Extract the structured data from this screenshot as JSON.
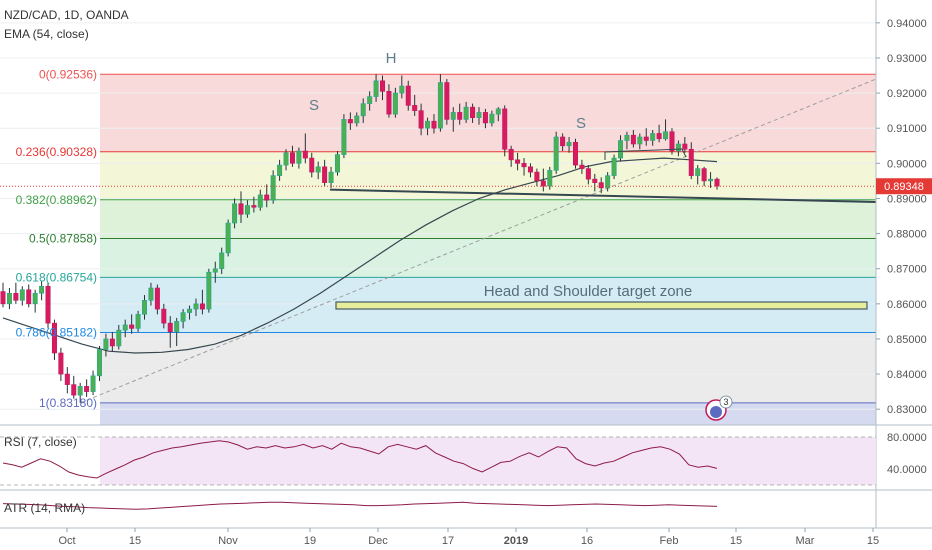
{
  "header": {
    "symbol": "NZD/CAD, 1D, OANDA",
    "ema_label": "EMA (54, close)"
  },
  "chart_data": {
    "type": "candlestick",
    "symbol": "NZD/CAD",
    "timeframe": "1D",
    "source": "OANDA",
    "ylim": [
      0.8255,
      0.9465
    ],
    "price_ticks": [
      "0.94000",
      "0.93000",
      "0.92000",
      "0.91000",
      "0.90000",
      "0.89000",
      "0.88000",
      "0.87000",
      "0.86000",
      "0.85000",
      "0.84000",
      "0.83000"
    ],
    "last_price": "0.89348",
    "x_ticks": [
      "Oct",
      "15",
      "Nov",
      "19",
      "Dec",
      "17",
      "2019",
      "16",
      "Feb",
      "15",
      "Mar",
      "15"
    ],
    "fib_levels": [
      {
        "label": "0(0.92536)",
        "value": 0.92536,
        "color": "#ef5350"
      },
      {
        "label": "0.236(0.90328)",
        "value": 0.90328,
        "color": "#e53935"
      },
      {
        "label": "0.382(0.88962)",
        "value": 0.88962,
        "color": "#43a047"
      },
      {
        "label": "0.5(0.87858)",
        "value": 0.87858,
        "color": "#2e7d32"
      },
      {
        "label": "0.618(0.86754)",
        "value": 0.86754,
        "color": "#26a69a"
      },
      {
        "label": "0.786(0.85182)",
        "value": 0.85182,
        "color": "#1e88e5"
      },
      {
        "label": "1(0.83180)",
        "value": 0.8318,
        "color": "#5c6bc0"
      }
    ],
    "annotations": {
      "left_shoulder": "S",
      "head": "H",
      "right_shoulder": "S",
      "target_zone": "Head and Shoulder target zone"
    },
    "target_zone_value": 0.8585,
    "candles": [
      {
        "o": 0.8635,
        "h": 0.866,
        "l": 0.859,
        "c": 0.86
      },
      {
        "o": 0.86,
        "h": 0.8645,
        "l": 0.8585,
        "c": 0.863
      },
      {
        "o": 0.863,
        "h": 0.866,
        "l": 0.86,
        "c": 0.861
      },
      {
        "o": 0.861,
        "h": 0.865,
        "l": 0.8595,
        "c": 0.864
      },
      {
        "o": 0.864,
        "h": 0.8655,
        "l": 0.859,
        "c": 0.86
      },
      {
        "o": 0.86,
        "h": 0.864,
        "l": 0.8575,
        "c": 0.863
      },
      {
        "o": 0.863,
        "h": 0.8665,
        "l": 0.861,
        "c": 0.865
      },
      {
        "o": 0.865,
        "h": 0.866,
        "l": 0.853,
        "c": 0.8545
      },
      {
        "o": 0.8545,
        "h": 0.8555,
        "l": 0.844,
        "c": 0.846
      },
      {
        "o": 0.846,
        "h": 0.8475,
        "l": 0.838,
        "c": 0.84
      },
      {
        "o": 0.84,
        "h": 0.842,
        "l": 0.8345,
        "c": 0.837
      },
      {
        "o": 0.837,
        "h": 0.8395,
        "l": 0.833,
        "c": 0.834
      },
      {
        "o": 0.834,
        "h": 0.8375,
        "l": 0.8318,
        "c": 0.8365
      },
      {
        "o": 0.8365,
        "h": 0.8385,
        "l": 0.8335,
        "c": 0.835
      },
      {
        "o": 0.835,
        "h": 0.841,
        "l": 0.834,
        "c": 0.8395
      },
      {
        "o": 0.8395,
        "h": 0.848,
        "l": 0.838,
        "c": 0.847
      },
      {
        "o": 0.847,
        "h": 0.8515,
        "l": 0.845,
        "c": 0.85
      },
      {
        "o": 0.85,
        "h": 0.852,
        "l": 0.8465,
        "c": 0.848
      },
      {
        "o": 0.848,
        "h": 0.854,
        "l": 0.847,
        "c": 0.8525
      },
      {
        "o": 0.8525,
        "h": 0.8555,
        "l": 0.8505,
        "c": 0.854
      },
      {
        "o": 0.854,
        "h": 0.857,
        "l": 0.8515,
        "c": 0.853
      },
      {
        "o": 0.853,
        "h": 0.858,
        "l": 0.852,
        "c": 0.857
      },
      {
        "o": 0.857,
        "h": 0.8625,
        "l": 0.8555,
        "c": 0.861
      },
      {
        "o": 0.861,
        "h": 0.866,
        "l": 0.8595,
        "c": 0.8645
      },
      {
        "o": 0.8645,
        "h": 0.8655,
        "l": 0.857,
        "c": 0.8585
      },
      {
        "o": 0.8585,
        "h": 0.86,
        "l": 0.853,
        "c": 0.8545
      },
      {
        "o": 0.8545,
        "h": 0.8565,
        "l": 0.8475,
        "c": 0.852
      },
      {
        "o": 0.852,
        "h": 0.856,
        "l": 0.848,
        "c": 0.855
      },
      {
        "o": 0.855,
        "h": 0.8585,
        "l": 0.853,
        "c": 0.8575
      },
      {
        "o": 0.8575,
        "h": 0.8595,
        "l": 0.8555,
        "c": 0.8585
      },
      {
        "o": 0.8585,
        "h": 0.8615,
        "l": 0.8565,
        "c": 0.86
      },
      {
        "o": 0.86,
        "h": 0.864,
        "l": 0.857,
        "c": 0.8585
      },
      {
        "o": 0.8585,
        "h": 0.87,
        "l": 0.8575,
        "c": 0.869
      },
      {
        "o": 0.869,
        "h": 0.872,
        "l": 0.866,
        "c": 0.87
      },
      {
        "o": 0.87,
        "h": 0.876,
        "l": 0.8685,
        "c": 0.8745
      },
      {
        "o": 0.8745,
        "h": 0.884,
        "l": 0.8735,
        "c": 0.883
      },
      {
        "o": 0.883,
        "h": 0.89,
        "l": 0.8815,
        "c": 0.8885
      },
      {
        "o": 0.8885,
        "h": 0.892,
        "l": 0.883,
        "c": 0.8855
      },
      {
        "o": 0.8855,
        "h": 0.8895,
        "l": 0.8845,
        "c": 0.888
      },
      {
        "o": 0.888,
        "h": 0.8905,
        "l": 0.886,
        "c": 0.8875
      },
      {
        "o": 0.8875,
        "h": 0.8925,
        "l": 0.8865,
        "c": 0.891
      },
      {
        "o": 0.891,
        "h": 0.894,
        "l": 0.8875,
        "c": 0.8895
      },
      {
        "o": 0.8895,
        "h": 0.898,
        "l": 0.8885,
        "c": 0.8965
      },
      {
        "o": 0.8965,
        "h": 0.901,
        "l": 0.895,
        "c": 0.8995
      },
      {
        "o": 0.8995,
        "h": 0.904,
        "l": 0.898,
        "c": 0.903
      },
      {
        "o": 0.903,
        "h": 0.905,
        "l": 0.899,
        "c": 0.9
      },
      {
        "o": 0.9,
        "h": 0.9045,
        "l": 0.8985,
        "c": 0.9035
      },
      {
        "o": 0.9035,
        "h": 0.9085,
        "l": 0.9,
        "c": 0.9015
      },
      {
        "o": 0.9015,
        "h": 0.903,
        "l": 0.896,
        "c": 0.8975
      },
      {
        "o": 0.8975,
        "h": 0.9005,
        "l": 0.8955,
        "c": 0.899
      },
      {
        "o": 0.899,
        "h": 0.901,
        "l": 0.8935,
        "c": 0.8945
      },
      {
        "o": 0.8945,
        "h": 0.899,
        "l": 0.893,
        "c": 0.8975
      },
      {
        "o": 0.8975,
        "h": 0.9035,
        "l": 0.8965,
        "c": 0.9025
      },
      {
        "o": 0.9025,
        "h": 0.914,
        "l": 0.9015,
        "c": 0.9125
      },
      {
        "o": 0.9125,
        "h": 0.9145,
        "l": 0.9095,
        "c": 0.9115
      },
      {
        "o": 0.9115,
        "h": 0.9145,
        "l": 0.9105,
        "c": 0.9135
      },
      {
        "o": 0.9135,
        "h": 0.9185,
        "l": 0.9115,
        "c": 0.917
      },
      {
        "o": 0.917,
        "h": 0.9205,
        "l": 0.915,
        "c": 0.919
      },
      {
        "o": 0.919,
        "h": 0.9254,
        "l": 0.9175,
        "c": 0.9235
      },
      {
        "o": 0.9235,
        "h": 0.925,
        "l": 0.918,
        "c": 0.9205
      },
      {
        "o": 0.9205,
        "h": 0.9225,
        "l": 0.913,
        "c": 0.914
      },
      {
        "o": 0.914,
        "h": 0.9215,
        "l": 0.913,
        "c": 0.92
      },
      {
        "o": 0.92,
        "h": 0.925,
        "l": 0.9185,
        "c": 0.922
      },
      {
        "o": 0.922,
        "h": 0.9235,
        "l": 0.915,
        "c": 0.9165
      },
      {
        "o": 0.9165,
        "h": 0.9195,
        "l": 0.9135,
        "c": 0.915
      },
      {
        "o": 0.915,
        "h": 0.917,
        "l": 0.908,
        "c": 0.91
      },
      {
        "o": 0.91,
        "h": 0.913,
        "l": 0.908,
        "c": 0.912
      },
      {
        "o": 0.912,
        "h": 0.914,
        "l": 0.9085,
        "c": 0.91
      },
      {
        "o": 0.91,
        "h": 0.9254,
        "l": 0.909,
        "c": 0.923
      },
      {
        "o": 0.923,
        "h": 0.924,
        "l": 0.911,
        "c": 0.9125
      },
      {
        "o": 0.9125,
        "h": 0.916,
        "l": 0.909,
        "c": 0.9145
      },
      {
        "o": 0.9145,
        "h": 0.917,
        "l": 0.911,
        "c": 0.9125
      },
      {
        "o": 0.9125,
        "h": 0.9175,
        "l": 0.9115,
        "c": 0.916
      },
      {
        "o": 0.916,
        "h": 0.917,
        "l": 0.9115,
        "c": 0.913
      },
      {
        "o": 0.913,
        "h": 0.916,
        "l": 0.911,
        "c": 0.9145
      },
      {
        "o": 0.9145,
        "h": 0.9155,
        "l": 0.91,
        "c": 0.9115
      },
      {
        "o": 0.9115,
        "h": 0.915,
        "l": 0.9105,
        "c": 0.914
      },
      {
        "o": 0.914,
        "h": 0.916,
        "l": 0.912,
        "c": 0.9155
      },
      {
        "o": 0.9155,
        "h": 0.9165,
        "l": 0.902,
        "c": 0.904
      },
      {
        "o": 0.904,
        "h": 0.905,
        "l": 0.899,
        "c": 0.901
      },
      {
        "o": 0.901,
        "h": 0.903,
        "l": 0.898,
        "c": 0.9
      },
      {
        "o": 0.9,
        "h": 0.9015,
        "l": 0.8965,
        "c": 0.899
      },
      {
        "o": 0.899,
        "h": 0.9,
        "l": 0.896,
        "c": 0.8975
      },
      {
        "o": 0.8975,
        "h": 0.8985,
        "l": 0.8935,
        "c": 0.895
      },
      {
        "o": 0.895,
        "h": 0.8985,
        "l": 0.892,
        "c": 0.8935
      },
      {
        "o": 0.8935,
        "h": 0.899,
        "l": 0.8925,
        "c": 0.898
      },
      {
        "o": 0.898,
        "h": 0.909,
        "l": 0.897,
        "c": 0.9075
      },
      {
        "o": 0.9075,
        "h": 0.9085,
        "l": 0.9035,
        "c": 0.905
      },
      {
        "o": 0.905,
        "h": 0.9075,
        "l": 0.903,
        "c": 0.906
      },
      {
        "o": 0.906,
        "h": 0.907,
        "l": 0.8985,
        "c": 0.8995
      },
      {
        "o": 0.8995,
        "h": 0.901,
        "l": 0.897,
        "c": 0.8985
      },
      {
        "o": 0.8985,
        "h": 0.8995,
        "l": 0.894,
        "c": 0.8955
      },
      {
        "o": 0.8955,
        "h": 0.897,
        "l": 0.892,
        "c": 0.8945
      },
      {
        "o": 0.8945,
        "h": 0.896,
        "l": 0.8915,
        "c": 0.893
      },
      {
        "o": 0.893,
        "h": 0.8975,
        "l": 0.892,
        "c": 0.8965
      },
      {
        "o": 0.8965,
        "h": 0.9025,
        "l": 0.8955,
        "c": 0.9015
      },
      {
        "o": 0.9015,
        "h": 0.908,
        "l": 0.9005,
        "c": 0.9065
      },
      {
        "o": 0.9065,
        "h": 0.909,
        "l": 0.904,
        "c": 0.908
      },
      {
        "o": 0.908,
        "h": 0.9095,
        "l": 0.9045,
        "c": 0.9055
      },
      {
        "o": 0.9055,
        "h": 0.9085,
        "l": 0.904,
        "c": 0.9075
      },
      {
        "o": 0.9075,
        "h": 0.91,
        "l": 0.905,
        "c": 0.9065
      },
      {
        "o": 0.9065,
        "h": 0.9095,
        "l": 0.905,
        "c": 0.9085
      },
      {
        "o": 0.9085,
        "h": 0.911,
        "l": 0.906,
        "c": 0.907
      },
      {
        "o": 0.907,
        "h": 0.9125,
        "l": 0.9065,
        "c": 0.909
      },
      {
        "o": 0.909,
        "h": 0.91,
        "l": 0.9025,
        "c": 0.9035
      },
      {
        "o": 0.9035,
        "h": 0.9065,
        "l": 0.902,
        "c": 0.9055
      },
      {
        "o": 0.9055,
        "h": 0.9075,
        "l": 0.903,
        "c": 0.904
      },
      {
        "o": 0.904,
        "h": 0.906,
        "l": 0.8955,
        "c": 0.8965
      },
      {
        "o": 0.8965,
        "h": 0.8995,
        "l": 0.894,
        "c": 0.8985
      },
      {
        "o": 0.8985,
        "h": 0.899,
        "l": 0.8935,
        "c": 0.895
      },
      {
        "o": 0.895,
        "h": 0.8975,
        "l": 0.893,
        "c": 0.8955
      },
      {
        "o": 0.8955,
        "h": 0.896,
        "l": 0.8925,
        "c": 0.8935
      }
    ],
    "ema": [
      0.856,
      0.8535,
      0.851,
      0.8485,
      0.8465,
      0.846,
      0.8462,
      0.847,
      0.8485,
      0.851,
      0.8545,
      0.8585,
      0.863,
      0.868,
      0.873,
      0.878,
      0.8825,
      0.8865,
      0.89,
      0.8925,
      0.8945,
      0.8965,
      0.899,
      0.9005,
      0.901,
      0.9015,
      0.901,
      0.9005
    ],
    "neckline": [
      0.8925,
      0.889
    ],
    "trendline": [
      0.8318,
      0.924
    ]
  },
  "rsi": {
    "label": "RSI (7, close)",
    "ticks": [
      "80.0000",
      "40.0000"
    ],
    "values": [
      45,
      42,
      38,
      45,
      52,
      48,
      40,
      30,
      25,
      22,
      20,
      28,
      35,
      42,
      50,
      55,
      62,
      66,
      70,
      72,
      75,
      78,
      80,
      82,
      80,
      75,
      68,
      72,
      70,
      74,
      70,
      72,
      76,
      70,
      74,
      68,
      78,
      72,
      70,
      65,
      60,
      72,
      76,
      72,
      68,
      74,
      62,
      55,
      48,
      44,
      36,
      30,
      38,
      46,
      48,
      56,
      62,
      55,
      64,
      72,
      70,
      52,
      44,
      40,
      45,
      48,
      55,
      62,
      66,
      70,
      72,
      68,
      60,
      42,
      38,
      40,
      36
    ]
  },
  "atr": {
    "label": "ATR (14, RMA)",
    "values": [
      55,
      54,
      53,
      52,
      50,
      48,
      47,
      45,
      44,
      43,
      42,
      41,
      42,
      44,
      46,
      48,
      50,
      52,
      54,
      55,
      56,
      57,
      58,
      58,
      57,
      56,
      55,
      54,
      53,
      52,
      50,
      50,
      51,
      52,
      54,
      55,
      56,
      57,
      58,
      56,
      55,
      54,
      53,
      52,
      51,
      50,
      51,
      52,
      53,
      54,
      53,
      52,
      51,
      50,
      51,
      52,
      51,
      50,
      49,
      48
    ]
  },
  "badge": {
    "count": "3"
  }
}
